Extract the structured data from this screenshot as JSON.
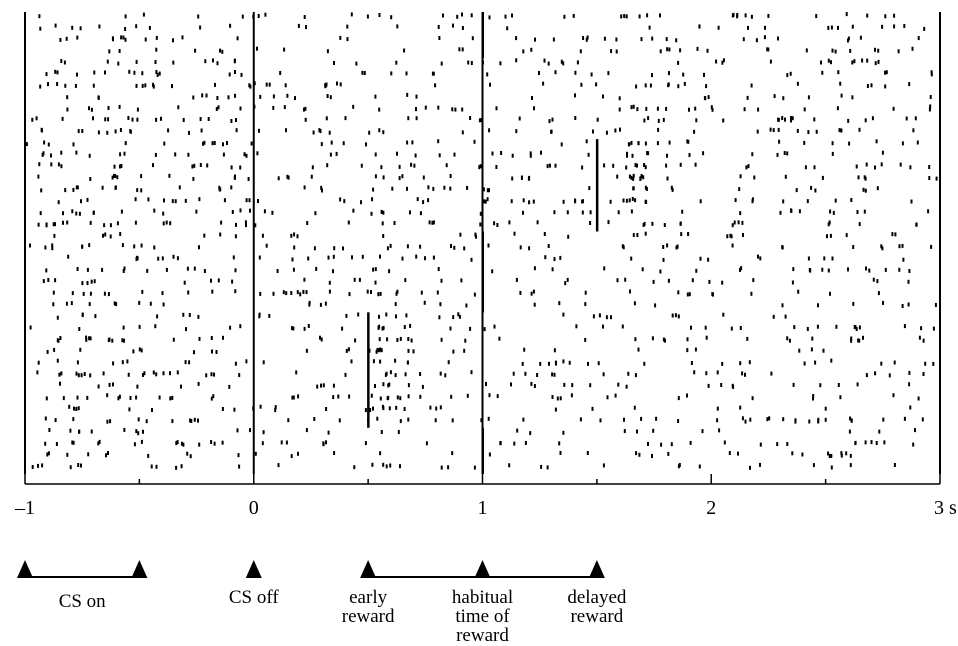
{
  "chart_data": {
    "type": "scatter",
    "description_kind": "spike raster",
    "xlim": [
      -1,
      3
    ],
    "x_unit": "s",
    "x_ticks": [
      {
        "value": -1,
        "label": "–1"
      },
      {
        "value": 0,
        "label": "0"
      },
      {
        "value": 1,
        "label": "1"
      },
      {
        "value": 2,
        "label": "2"
      },
      {
        "value": 3,
        "label": "3 s"
      }
    ],
    "trial_count": 40,
    "event_lines": [
      -1,
      0,
      1,
      3
    ],
    "reward_marks": [
      {
        "time": 0.5,
        "trials_from": 26,
        "trials_to": 35
      },
      {
        "time": 1.0,
        "trials_from": 0,
        "trials_to": 3
      },
      {
        "time": 1.0,
        "trials_from": 19,
        "trials_to": 25
      },
      {
        "time": 1.0,
        "trials_from": 36,
        "trials_to": 39
      },
      {
        "time": 1.5,
        "trials_from": 11,
        "trials_to": 18
      }
    ],
    "bursts": [
      {
        "time_from": 0.52,
        "time_to": 0.68,
        "trials_from": 26,
        "trials_to": 35
      },
      {
        "time_from": 1.62,
        "time_to": 1.72,
        "trials_from": 11,
        "trials_to": 16
      }
    ],
    "markers": [
      {
        "time": -1,
        "label": ""
      },
      {
        "time": -0.5,
        "label": ""
      },
      {
        "time": 0,
        "label": "CS off"
      },
      {
        "time": 0.5,
        "label": "early\nreward"
      },
      {
        "time": 1,
        "label": "habitual\ntime of\nreward"
      },
      {
        "time": 1.5,
        "label": "delayed\nreward"
      }
    ],
    "spans": [
      {
        "from": -1,
        "to": -0.5,
        "label": "CS on"
      },
      {
        "from": 0.5,
        "to": 1.5,
        "label": ""
      }
    ]
  }
}
